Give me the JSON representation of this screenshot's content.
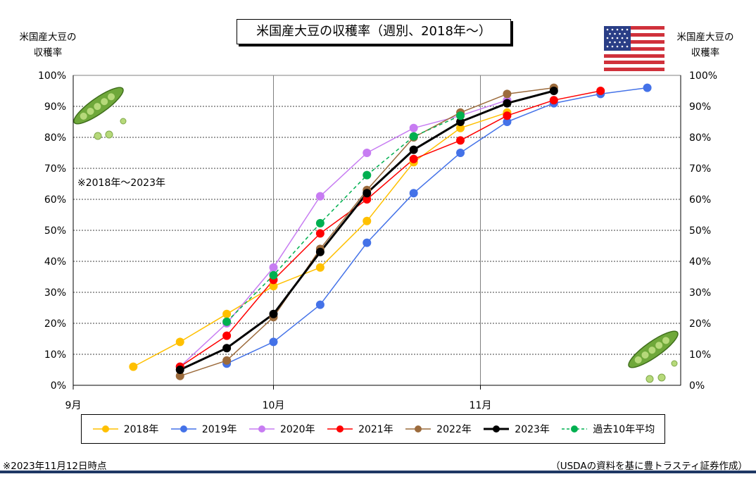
{
  "title": "米国産大豆の収穫率（週別、2018年～）",
  "y_axis_label_line1": "米国産大豆の",
  "y_axis_label_line2": "収穫率",
  "range_note": "※2018年～2023年",
  "footnote_date": "※2023年11月12日時点",
  "footnote_source": "（USDAの資料を基に豊トラスティ証券作成）",
  "icons": [
    "us-flag-icon",
    "soybean-pod-icon"
  ],
  "colors": {
    "bottom_rule": "#1f3864"
  },
  "chart_data": {
    "type": "line",
    "title": "米国産大豆の収穫率（週別、2018年～）",
    "ylabel": "米国産大豆の収穫率",
    "ylim": [
      0,
      100
    ],
    "yticks": [
      "0%",
      "10%",
      "20%",
      "30%",
      "40%",
      "50%",
      "60%",
      "70%",
      "80%",
      "90%",
      "100%"
    ],
    "xlim": [
      "9-01",
      "10-31"
    ],
    "xticks": [
      {
        "x": "9-01",
        "label": "9月"
      },
      {
        "x": "10-01",
        "label": "10月"
      },
      {
        "x": "11-01",
        "label": "11月"
      }
    ],
    "grid": "horizontal dotted, vertical solid at month starts",
    "legend": "bottom",
    "series": [
      {
        "name": "2018年",
        "color": "#FFC000",
        "style": "solid",
        "width": 1.5,
        "x": [
          "9-10",
          "9-17",
          "9-24",
          "10-01",
          "10-08",
          "10-15",
          "10-22",
          "10-29",
          "11-05"
        ],
        "y": [
          6,
          14,
          23,
          32,
          38,
          53,
          72,
          83,
          88
        ]
      },
      {
        "name": "2019年",
        "color": "#4472E8",
        "style": "solid",
        "width": 1.5,
        "x": [
          "9-24",
          "10-01",
          "10-08",
          "10-15",
          "10-22",
          "10-29",
          "11-05",
          "11-12",
          "11-19",
          "11-26"
        ],
        "y": [
          7,
          14,
          26,
          46,
          62,
          75,
          85,
          91,
          94,
          96
        ]
      },
      {
        "name": "2020年",
        "color": "#C77CF2",
        "style": "solid",
        "width": 1.5,
        "x": [
          "9-17",
          "9-24",
          "10-01",
          "10-08",
          "10-15",
          "10-22",
          "10-29",
          "11-05"
        ],
        "y": [
          6,
          20,
          38,
          61,
          75,
          83,
          87,
          92
        ]
      },
      {
        "name": "2021年",
        "color": "#FF0000",
        "style": "solid",
        "width": 1.5,
        "x": [
          "9-17",
          "9-24",
          "10-01",
          "10-08",
          "10-15",
          "10-22",
          "10-29",
          "11-05",
          "11-12",
          "11-19"
        ],
        "y": [
          6,
          16,
          34,
          49,
          60,
          73,
          79,
          87,
          92,
          95
        ]
      },
      {
        "name": "2022年",
        "color": "#9C6B3C",
        "style": "solid",
        "width": 1.5,
        "x": [
          "9-17",
          "9-24",
          "10-01",
          "10-08",
          "10-15",
          "10-22",
          "10-29",
          "11-05",
          "11-12"
        ],
        "y": [
          3,
          8,
          22,
          44,
          63,
          80,
          88,
          94,
          96
        ]
      },
      {
        "name": "2023年",
        "color": "#000000",
        "style": "solid",
        "width": 3,
        "x": [
          "9-17",
          "9-24",
          "10-01",
          "10-08",
          "10-15",
          "10-22",
          "10-29",
          "11-05",
          "11-12"
        ],
        "y": [
          5,
          12,
          23,
          43,
          62,
          76,
          85,
          91,
          95
        ]
      },
      {
        "name": "過去10年平均",
        "color": "#00B050",
        "style": "dashed",
        "width": 1.5,
        "x": [
          "9-24",
          "10-01",
          "10-08",
          "10-15",
          "10-22",
          "10-29"
        ],
        "y": [
          20.5,
          35.5,
          52.3,
          67.8,
          80.3,
          87
        ]
      }
    ]
  }
}
